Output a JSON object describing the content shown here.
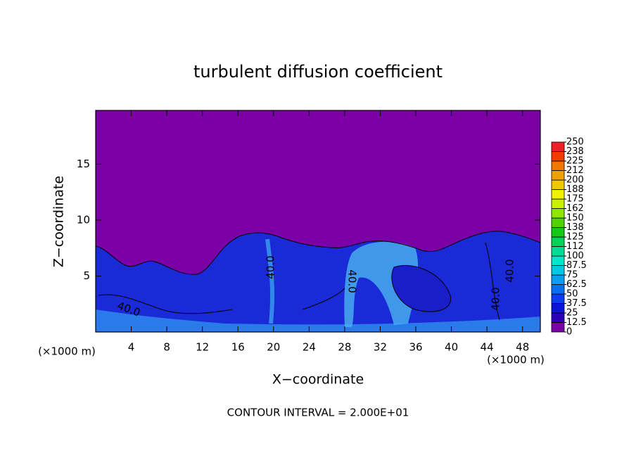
{
  "chart_data": {
    "type": "contour",
    "title": "turbulent diffusion coefficient",
    "xlabel": "X−coordinate",
    "ylabel": "Z−coordinate",
    "x_unit_labels": [
      "(×1000 m)",
      "(×1000 m)"
    ],
    "footnote": "CONTOUR INTERVAL = 2.000E+01",
    "contour_labels": [
      "40.0",
      "40.0",
      "40.0",
      "40.0",
      "40.0"
    ],
    "xlim": [
      0,
      50
    ],
    "xticks": [
      4,
      8,
      12,
      16,
      20,
      24,
      28,
      32,
      36,
      40,
      44,
      48
    ],
    "ylim": [
      0,
      19.8
    ],
    "yticks": [
      5,
      10,
      15
    ],
    "colorbar": {
      "levels": [
        0,
        12.5,
        25,
        37.5,
        50,
        62.5,
        75,
        87.5,
        100,
        {
          "value": 112.5,
          "label": "112"
        },
        125,
        {
          "value": 137.5,
          "label": "138"
        },
        150,
        {
          "value": 162.5,
          "label": "162"
        },
        175,
        {
          "value": 187.5,
          "label": "188"
        },
        200,
        {
          "value": 212.5,
          "label": "212"
        },
        225,
        {
          "value": 237.5,
          "label": "238"
        },
        250
      ],
      "colors": [
        "#7b00a6",
        "#2a00b4",
        "#0a14d8",
        "#0a3cf0",
        "#0a6ef0",
        "#0aa0f0",
        "#00c8e6",
        "#00e6c8",
        "#00dc96",
        "#00d25a",
        "#14c814",
        "#50d200",
        "#8ce600",
        "#c8f000",
        "#f0f000",
        "#f0c800",
        "#f0a000",
        "#f07800",
        "#f03c00",
        "#f01e28"
      ]
    }
  }
}
